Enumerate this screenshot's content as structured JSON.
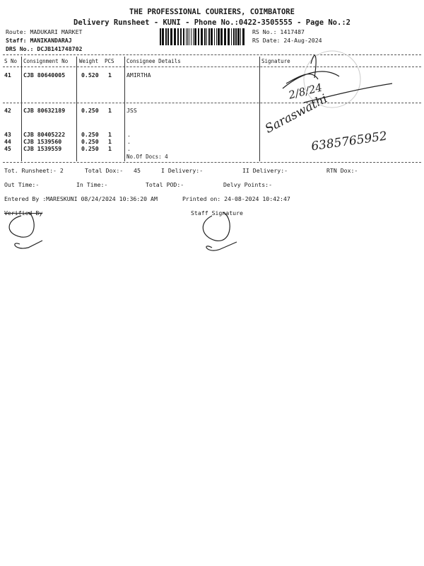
{
  "header": {
    "company": "THE PROFESSIONAL COURIERS, COIMBATORE",
    "subtitle": "Delivery Runsheet - KUNI - Phone No.:0422-3505555 - Page No.:2",
    "route": "Route: MADUKARI MARKET",
    "staff": "Staff: MANIKANDARAJ",
    "drs_no": "DRS No.: DCJB141748702",
    "rs_no": "RS No.: 1417487",
    "rs_date": "RS Date: 24-Aug-2024"
  },
  "table": {
    "columns": [
      "S No",
      "Consignment No",
      "Weight",
      "PCS",
      "Consignee Details",
      "Signature"
    ],
    "rows": [
      {
        "sno": "41",
        "consignment": "CJB 80640005",
        "weight": "0.520",
        "pcs": "1",
        "consignee": "AMIRTHA"
      },
      {
        "sno": "42",
        "consignment": "CJB 80632189",
        "weight": "0.250",
        "pcs": "1",
        "consignee": "JSS"
      },
      {
        "sno": "43",
        "consignment": "CJB 80405222",
        "weight": "0.250",
        "pcs": "1",
        "consignee": "."
      },
      {
        "sno": "44",
        "consignment": "CJB 1539560",
        "weight": "0.250",
        "pcs": "1",
        "consignee": "."
      },
      {
        "sno": "45",
        "consignment": "CJB 1539559",
        "weight": "0.250",
        "pcs": "1",
        "consignee": "."
      }
    ],
    "no_of_docs": "No.Of Docs: 4"
  },
  "handwriting": {
    "row42_name": "Saraswathi",
    "row42_phone": "6385765952",
    "row41_date": "2/8/24"
  },
  "summary": {
    "tot_runsheet": "Tot. Runsheet:- 2",
    "total_dox": "Total Dox:-   45",
    "i_delivery": "I Delivery:-",
    "ii_delivery": "II Delivery:-",
    "rtn_dox": "RTN Dox:-",
    "out_time": "Out Time:-",
    "in_time": "In Time:-",
    "total_pod": "Total POD:-",
    "delvy_points": "Delvy Points:-",
    "entered_by": "Entered By :MARESKUNI 08/24/2024 10:36:20 AM",
    "printed_on": "Printed on: 24-08-2024 10:42:47",
    "verified_by": "Verified By",
    "staff_signature": "Staff Signature"
  }
}
